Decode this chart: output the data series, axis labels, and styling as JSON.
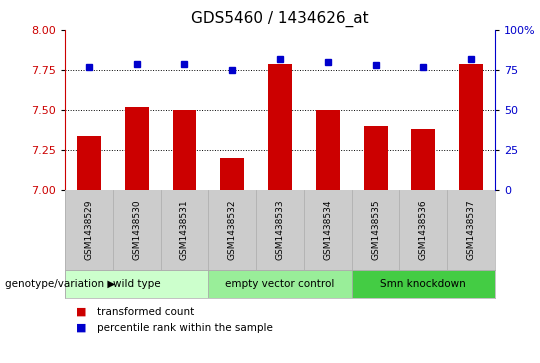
{
  "title": "GDS5460 / 1434626_at",
  "samples": [
    "GSM1438529",
    "GSM1438530",
    "GSM1438531",
    "GSM1438532",
    "GSM1438533",
    "GSM1438534",
    "GSM1438535",
    "GSM1438536",
    "GSM1438537"
  ],
  "bar_values": [
    7.34,
    7.52,
    7.5,
    7.2,
    7.79,
    7.5,
    7.4,
    7.38,
    7.79
  ],
  "dot_values": [
    7.77,
    7.79,
    7.79,
    7.75,
    7.82,
    7.8,
    7.78,
    7.77,
    7.82
  ],
  "ylim_left": [
    7.0,
    8.0
  ],
  "yticks_left": [
    7.0,
    7.25,
    7.5,
    7.75,
    8.0
  ],
  "ylim_right": [
    0,
    100
  ],
  "yticks_right": [
    0,
    25,
    50,
    75,
    100
  ],
  "bar_color": "#cc0000",
  "dot_color": "#0000cc",
  "bar_width": 0.5,
  "groups": [
    {
      "label": "wild type",
      "start": 0,
      "end": 3,
      "color": "#ccffcc"
    },
    {
      "label": "empty vector control",
      "start": 3,
      "end": 6,
      "color": "#99ee99"
    },
    {
      "label": "Smn knockdown",
      "start": 6,
      "end": 9,
      "color": "#44cc44"
    }
  ],
  "group_row_label": "genotype/variation",
  "legend_entries": [
    {
      "label": "transformed count",
      "color": "#cc0000"
    },
    {
      "label": "percentile rank within the sample",
      "color": "#0000cc"
    }
  ],
  "plot_bg": "#ffffff",
  "sample_row_bg": "#cccccc",
  "grid_color": "#000000",
  "title_fontsize": 11,
  "tick_fontsize": 8,
  "label_fontsize": 8
}
